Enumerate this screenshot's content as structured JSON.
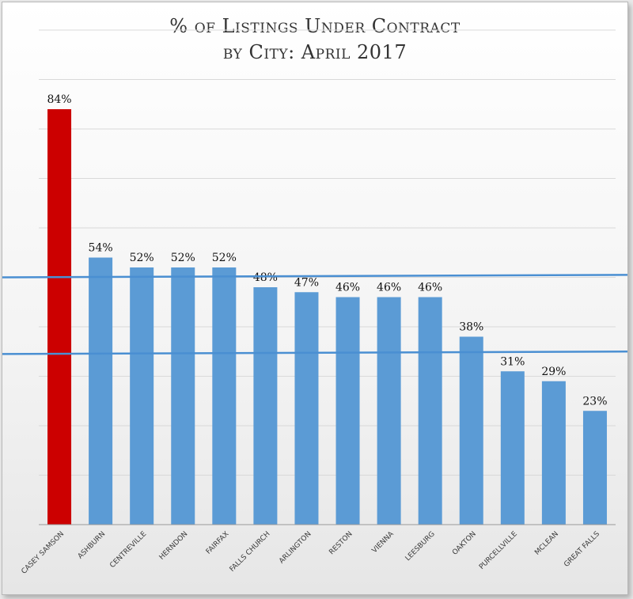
{
  "chart_data": {
    "type": "bar",
    "title_lines": [
      "% of Listings Under Contract",
      "by City: April 2017"
    ],
    "categories": [
      "CASEY SAMSON",
      "ASHBURN",
      "CENTREVILLE",
      "HERNDON",
      "FAIRFAX",
      "FALLS CHURCH",
      "ARLINGTON",
      "RESTON",
      "VIENNA",
      "LEESBURG",
      "OAKTON",
      "PURCELLVILLE",
      "MCLEAN",
      "GREAT FALLS"
    ],
    "values": [
      84,
      54,
      52,
      52,
      52,
      48,
      47,
      46,
      46,
      46,
      38,
      31,
      29,
      23
    ],
    "data_labels": [
      "84%",
      "54%",
      "52%",
      "52%",
      "52%",
      "48%",
      "47%",
      "46%",
      "46%",
      "46%",
      "38%",
      "31%",
      "29%",
      "23%"
    ],
    "ylim": [
      0,
      100
    ],
    "grid": true,
    "y_axis_labels_visible": false,
    "highlight_index": 0,
    "colors": {
      "highlight": "#cc0000",
      "bar": "#5b9bd5",
      "reference_line": "#4a8fd2",
      "grid": "#d9d9d9"
    },
    "reference_lines": [
      {
        "y_start": 50,
        "y_end": 50.5
      },
      {
        "y_start": 34.5,
        "y_end": 35
      }
    ]
  }
}
